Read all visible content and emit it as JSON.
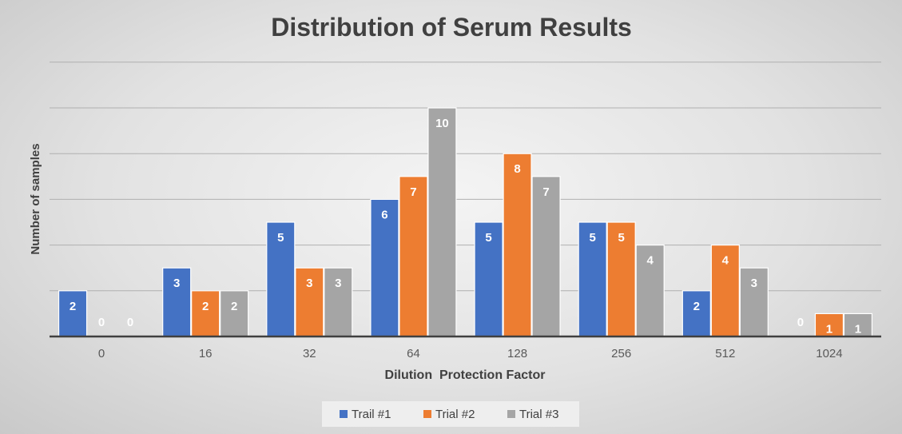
{
  "chart_data": {
    "type": "bar",
    "title": "Distribution of Serum Results",
    "xlabel": "Dilution  Protection Factor",
    "ylabel": "Number of samples",
    "categories": [
      "0",
      "16",
      "32",
      "64",
      "128",
      "256",
      "512",
      "1024"
    ],
    "series": [
      {
        "name": "Trail #1",
        "color": "#4472c4",
        "values": [
          2,
          3,
          5,
          6,
          5,
          5,
          2,
          0
        ]
      },
      {
        "name": "Trial #2",
        "color": "#ed7d31",
        "values": [
          0,
          2,
          3,
          7,
          8,
          5,
          4,
          1
        ]
      },
      {
        "name": "Trial #3",
        "color": "#a5a5a5",
        "values": [
          0,
          2,
          3,
          10,
          7,
          4,
          3,
          1
        ]
      }
    ],
    "ylim": [
      0,
      12
    ],
    "grid": true,
    "legend_position": "bottom"
  }
}
